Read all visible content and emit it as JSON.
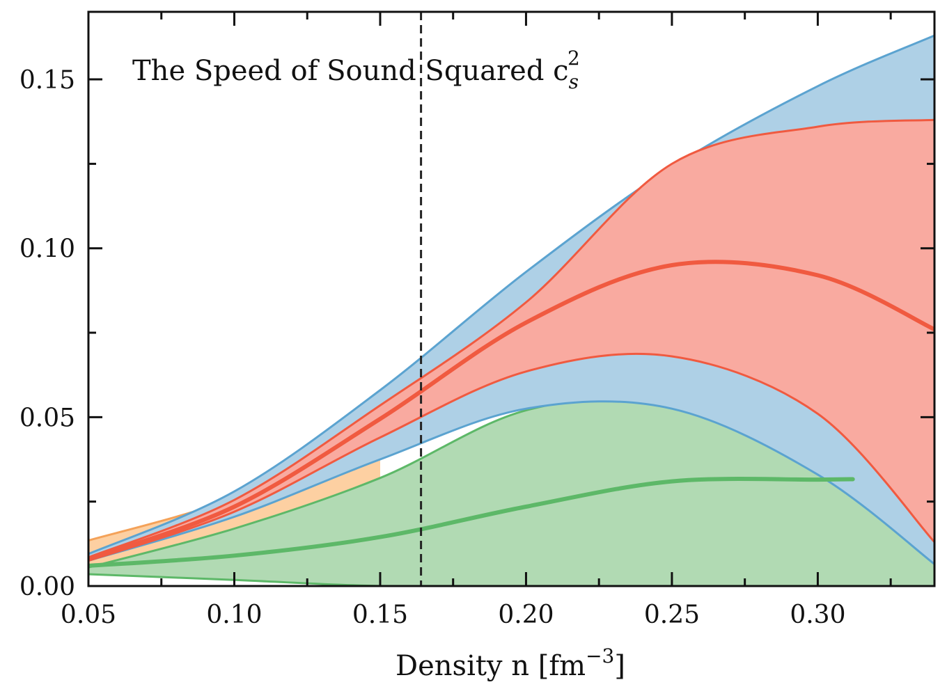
{
  "chart_data": {
    "type": "area",
    "annotation": "The Speed of Sound Squared c",
    "annotation_sub": "s",
    "annotation_sup": "2",
    "xlabel": "Density n [fm",
    "xlabel_sup": "−3",
    "xlabel_close": "]",
    "ylabel": "",
    "xlim": [
      0.05,
      0.34
    ],
    "ylim": [
      0.0,
      0.17
    ],
    "xticks": [
      "0.05",
      "0.10",
      "0.15",
      "0.20",
      "0.25",
      "0.30"
    ],
    "xtick_values": [
      0.05,
      0.1,
      0.15,
      0.2,
      0.25,
      0.3
    ],
    "yticks": [
      "0.00",
      "0.05",
      "0.10",
      "0.15"
    ],
    "ytick_values": [
      0.0,
      0.05,
      0.1,
      0.15
    ],
    "x_minor_step": 0.025,
    "y_minor_step": 0.025,
    "reference_line": {
      "x": 0.164,
      "style": "dashed",
      "color": "#222222"
    },
    "x": [
      0.05,
      0.1,
      0.15,
      0.2,
      0.25,
      0.3,
      0.34
    ],
    "bands": [
      {
        "color": "#fdd0a2",
        "edge": "#f4a259",
        "x_end": 0.34,
        "upper": [
          0.0135,
          0.026,
          0.0455,
          null,
          null,
          null,
          null
        ],
        "lower": [
          0.0055,
          0.014,
          0.032,
          null,
          null,
          null,
          null
        ]
      },
      {
        "color": "#b1dab3",
        "edge": "#5db868",
        "x_end": 0.34,
        "upper": [
          0.0055,
          0.017,
          0.032,
          0.052,
          0.055,
          0.037,
          0.0065
        ],
        "lower": [
          0.0035,
          0.0018,
          0.0,
          0.0,
          0.0,
          0.0,
          0.0
        ]
      },
      {
        "color": "#aed0e6",
        "edge": "#5ba3d0",
        "x_end": 0.34,
        "upper": [
          0.0095,
          0.028,
          0.058,
          0.093,
          0.124,
          0.148,
          0.163
        ],
        "lower": [
          0.0075,
          0.0205,
          0.0375,
          0.0525,
          0.0525,
          0.033,
          0.0065
        ]
      },
      {
        "color": "#f9aaa0",
        "edge": "#f05a40",
        "x_end": 0.34,
        "upper": [
          0.0085,
          0.0255,
          0.0535,
          0.084,
          0.125,
          0.136,
          0.138
        ],
        "lower": [
          0.0075,
          0.022,
          0.044,
          0.0635,
          0.068,
          0.051,
          0.013
        ]
      }
    ],
    "series": [
      {
        "color": "#f05a40",
        "width": 6,
        "values": [
          0.008,
          0.0235,
          0.0495,
          0.078,
          0.095,
          0.092,
          0.076
        ]
      },
      {
        "color": "#5db868",
        "width": 6,
        "x_end": 0.312,
        "values": [
          0.006,
          0.009,
          0.0145,
          0.0235,
          0.031,
          0.0315,
          null
        ]
      }
    ]
  }
}
